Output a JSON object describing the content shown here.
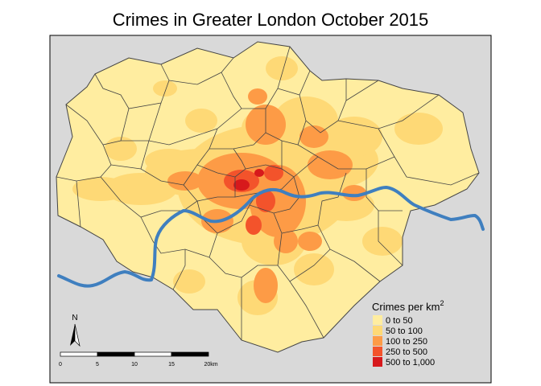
{
  "title": "Crimes in Greater London October 2015",
  "legend": {
    "title_text": "Crimes per km",
    "title_superscript": "2",
    "classes": [
      {
        "label": "0 to 50",
        "color": "#ffeda0"
      },
      {
        "label": "50 to 100",
        "color": "#fed976"
      },
      {
        "label": "100 to 250",
        "color": "#fd9b46"
      },
      {
        "label": "250 to 500",
        "color": "#f3532b"
      },
      {
        "label": "500 to 1,000",
        "color": "#d7191c"
      }
    ]
  },
  "north_arrow": {
    "label": "N"
  },
  "scale_bar": {
    "ticks": [
      "0",
      "5",
      "10",
      "15",
      "20km"
    ]
  },
  "colors": {
    "background": "#d9d9d9",
    "river": "#3f7fbf",
    "boundary": "#444444"
  }
}
